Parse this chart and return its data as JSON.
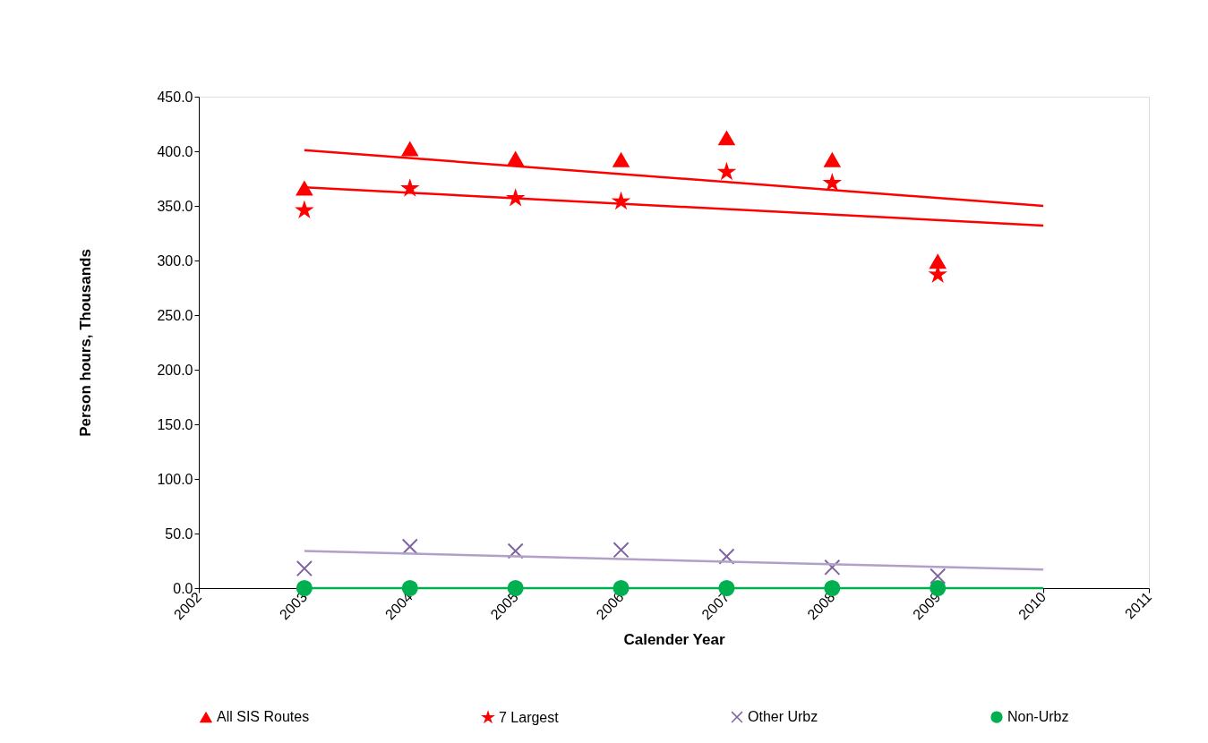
{
  "chart_data": {
    "type": "scatter",
    "xlabel": "Calender Year",
    "ylabel": "Person hours, Thousands",
    "xlim": [
      2002,
      2011
    ],
    "xticks": [
      2002,
      2003,
      2004,
      2005,
      2006,
      2007,
      2008,
      2009,
      2010,
      2011
    ],
    "ylim": [
      0,
      450
    ],
    "yticks": [
      {
        "value": 0,
        "label": "0.0"
      },
      {
        "value": 50,
        "label": "50.0"
      },
      {
        "value": 100,
        "label": "100.0"
      },
      {
        "value": 150,
        "label": "150.0"
      },
      {
        "value": 200,
        "label": "200.0"
      },
      {
        "value": 250,
        "label": "250.0"
      },
      {
        "value": 300,
        "label": "300.0"
      },
      {
        "value": 350,
        "label": "350.0"
      },
      {
        "value": 400,
        "label": "400.0"
      },
      {
        "value": 450,
        "label": "450.0"
      }
    ],
    "grid": false,
    "legend": "bottom",
    "series": [
      {
        "name": "All SIS Routes",
        "marker": "triangle",
        "color": "#ff0000",
        "x": [
          2003,
          2004,
          2005,
          2006,
          2007,
          2008,
          2009
        ],
        "values": [
          366,
          402,
          393,
          392,
          412,
          392,
          299
        ]
      },
      {
        "name": "7 Largest",
        "marker": "star",
        "color": "#ff0000",
        "x": [
          2003,
          2004,
          2005,
          2006,
          2007,
          2008,
          2009
        ],
        "values": [
          346,
          366,
          357,
          354,
          381,
          371,
          287
        ]
      },
      {
        "name": "Other Urbz",
        "marker": "cross",
        "color": "#8064a2",
        "x": [
          2003,
          2004,
          2005,
          2006,
          2007,
          2008,
          2009
        ],
        "values": [
          18,
          38,
          34,
          35,
          29,
          19,
          11
        ]
      },
      {
        "name": "Non-Urbz",
        "marker": "circle",
        "color": "#00b050",
        "x": [
          2003,
          2004,
          2005,
          2006,
          2007,
          2008,
          2009
        ],
        "values": [
          0,
          0,
          0,
          0,
          0,
          0,
          0
        ]
      },
      {
        "type": "line",
        "marker": "none",
        "color": "#ff0000",
        "x": [
          2003,
          2010
        ],
        "values": [
          401,
          350
        ]
      },
      {
        "type": "line",
        "marker": "none",
        "color": "#ff0000",
        "x": [
          2003,
          2010
        ],
        "values": [
          367,
          332
        ]
      },
      {
        "type": "line",
        "marker": "none",
        "color": "#b1a0c7",
        "x": [
          2003,
          2010
        ],
        "values": [
          34,
          17
        ]
      },
      {
        "type": "line",
        "marker": "none",
        "color": "#00b050",
        "x": [
          2003,
          2010
        ],
        "values": [
          0,
          0
        ]
      }
    ]
  }
}
